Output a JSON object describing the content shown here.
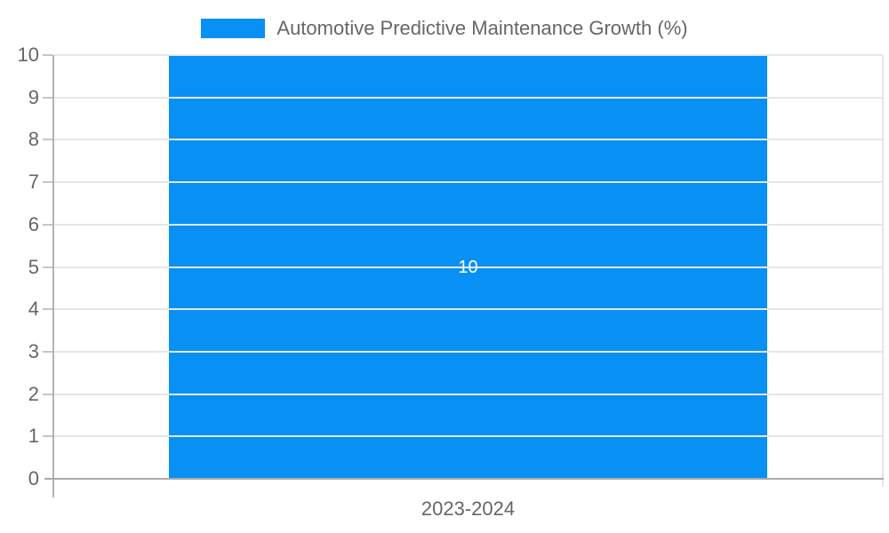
{
  "chart_data": {
    "type": "bar",
    "categories": [
      "2023-2024"
    ],
    "series": [
      {
        "name": "Automotive Predictive Maintenance Growth (%)",
        "values": [
          10
        ]
      }
    ],
    "data_labels": [
      "10"
    ],
    "title": "",
    "xlabel": "",
    "ylabel": "",
    "ylim": [
      0,
      10
    ],
    "yticks": [
      0,
      1,
      2,
      3,
      4,
      5,
      6,
      7,
      8,
      9,
      10
    ],
    "grid": true,
    "legend_position": "top",
    "colors": {
      "bar": "#0990f5",
      "grid": "#e6e6e6",
      "axis": "#b3b3b3",
      "baseline": "#ababab",
      "tick_mark": "#c6c6c6",
      "text": "#666666",
      "data_label": "#ffffff",
      "background": "#ffffff"
    }
  }
}
